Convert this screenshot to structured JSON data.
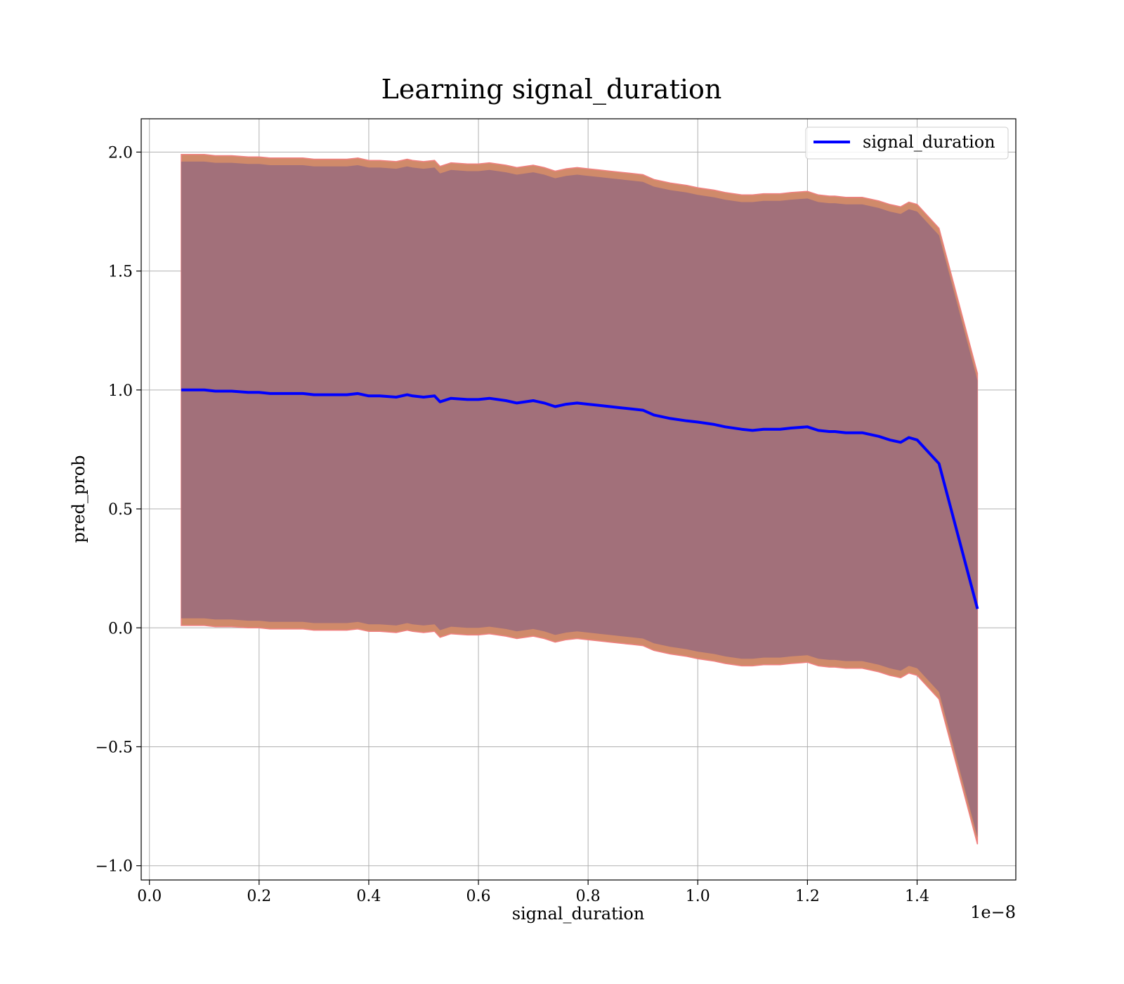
{
  "chart_data": {
    "type": "line",
    "title": "Learning signal_duration",
    "xlabel": "signal_duration",
    "ylabel": "pred_prob",
    "x_offset_label": "1e−8",
    "xlim": [
      -0.015,
      1.58
    ],
    "ylim": [
      -1.06,
      2.14
    ],
    "x_ticks": [
      0.0,
      0.2,
      0.4,
      0.6,
      0.8,
      1.0,
      1.2,
      1.4
    ],
    "x_tick_labels": [
      "0.0",
      "0.2",
      "0.4",
      "0.6",
      "0.8",
      "1.0",
      "1.2",
      "1.4"
    ],
    "y_ticks": [
      -1.0,
      -0.5,
      0.0,
      0.5,
      1.0,
      1.5,
      2.0
    ],
    "y_tick_labels": [
      "−1.0",
      "−0.5",
      "0.0",
      "0.5",
      "1.0",
      "1.5",
      "2.0"
    ],
    "grid": true,
    "legend_position": "top-right",
    "colors": {
      "line": "#0000ff",
      "band_outer": "#d08a6a",
      "band_inner": "#a2707a",
      "band_edge": "#f08080",
      "grid": "#b0b0b0"
    },
    "series": [
      {
        "name": "signal_duration",
        "x": [
          0.058,
          0.08,
          0.1,
          0.12,
          0.15,
          0.18,
          0.2,
          0.22,
          0.25,
          0.28,
          0.3,
          0.33,
          0.36,
          0.38,
          0.4,
          0.42,
          0.45,
          0.47,
          0.48,
          0.5,
          0.52,
          0.53,
          0.55,
          0.58,
          0.6,
          0.62,
          0.65,
          0.67,
          0.7,
          0.72,
          0.74,
          0.76,
          0.78,
          0.8,
          0.82,
          0.84,
          0.86,
          0.88,
          0.9,
          0.92,
          0.95,
          0.98,
          1.0,
          1.03,
          1.05,
          1.08,
          1.1,
          1.12,
          1.15,
          1.17,
          1.2,
          1.22,
          1.24,
          1.25,
          1.27,
          1.3,
          1.33,
          1.35,
          1.37,
          1.385,
          1.4,
          1.44,
          1.51
        ],
        "values": [
          1.0,
          1.0,
          1.0,
          0.995,
          0.995,
          0.99,
          0.99,
          0.985,
          0.985,
          0.985,
          0.98,
          0.98,
          0.98,
          0.985,
          0.975,
          0.975,
          0.97,
          0.98,
          0.975,
          0.97,
          0.975,
          0.95,
          0.965,
          0.96,
          0.96,
          0.965,
          0.955,
          0.945,
          0.955,
          0.945,
          0.93,
          0.94,
          0.945,
          0.94,
          0.935,
          0.93,
          0.925,
          0.92,
          0.915,
          0.895,
          0.88,
          0.87,
          0.865,
          0.855,
          0.845,
          0.835,
          0.83,
          0.835,
          0.835,
          0.84,
          0.845,
          0.83,
          0.825,
          0.825,
          0.82,
          0.82,
          0.805,
          0.79,
          0.78,
          0.8,
          0.79,
          0.69,
          0.08
        ]
      }
    ],
    "band": {
      "upper_outer": [
        1.99,
        1.99,
        1.99,
        1.985,
        1.985,
        1.98,
        1.98,
        1.975,
        1.975,
        1.975,
        1.97,
        1.97,
        1.97,
        1.975,
        1.965,
        1.965,
        1.96,
        1.97,
        1.965,
        1.96,
        1.965,
        1.94,
        1.955,
        1.95,
        1.95,
        1.955,
        1.945,
        1.935,
        1.945,
        1.935,
        1.92,
        1.93,
        1.935,
        1.93,
        1.925,
        1.92,
        1.915,
        1.91,
        1.905,
        1.885,
        1.87,
        1.86,
        1.85,
        1.84,
        1.83,
        1.82,
        1.82,
        1.825,
        1.825,
        1.83,
        1.835,
        1.82,
        1.815,
        1.815,
        1.81,
        1.81,
        1.795,
        1.78,
        1.77,
        1.79,
        1.78,
        1.68,
        1.07
      ],
      "upper_inner": [
        1.96,
        1.96,
        1.96,
        1.955,
        1.955,
        1.95,
        1.95,
        1.945,
        1.945,
        1.945,
        1.94,
        1.94,
        1.94,
        1.945,
        1.935,
        1.935,
        1.93,
        1.94,
        1.935,
        1.93,
        1.935,
        1.91,
        1.925,
        1.92,
        1.92,
        1.925,
        1.915,
        1.905,
        1.915,
        1.905,
        1.89,
        1.9,
        1.905,
        1.9,
        1.895,
        1.89,
        1.885,
        1.88,
        1.875,
        1.855,
        1.84,
        1.83,
        1.82,
        1.81,
        1.8,
        1.79,
        1.79,
        1.795,
        1.795,
        1.8,
        1.805,
        1.79,
        1.785,
        1.785,
        1.78,
        1.78,
        1.765,
        1.75,
        1.74,
        1.76,
        1.75,
        1.65,
        1.04
      ],
      "lower_inner": [
        0.04,
        0.04,
        0.04,
        0.035,
        0.035,
        0.03,
        0.03,
        0.025,
        0.025,
        0.025,
        0.02,
        0.02,
        0.02,
        0.025,
        0.015,
        0.015,
        0.01,
        0.02,
        0.015,
        0.01,
        0.015,
        -0.01,
        0.005,
        0.0,
        0.0,
        0.005,
        -0.005,
        -0.015,
        -0.005,
        -0.015,
        -0.03,
        -0.02,
        -0.015,
        -0.02,
        -0.025,
        -0.03,
        -0.035,
        -0.04,
        -0.045,
        -0.065,
        -0.08,
        -0.09,
        -0.1,
        -0.11,
        -0.12,
        -0.13,
        -0.13,
        -0.125,
        -0.125,
        -0.12,
        -0.115,
        -0.13,
        -0.135,
        -0.135,
        -0.14,
        -0.14,
        -0.155,
        -0.17,
        -0.18,
        -0.16,
        -0.17,
        -0.27,
        -0.88
      ],
      "lower_outer": [
        0.01,
        0.01,
        0.01,
        0.005,
        0.005,
        0.0,
        0.0,
        -0.005,
        -0.005,
        -0.005,
        -0.01,
        -0.01,
        -0.01,
        -0.005,
        -0.015,
        -0.015,
        -0.02,
        -0.01,
        -0.015,
        -0.02,
        -0.015,
        -0.04,
        -0.025,
        -0.03,
        -0.03,
        -0.025,
        -0.035,
        -0.045,
        -0.035,
        -0.045,
        -0.06,
        -0.05,
        -0.045,
        -0.05,
        -0.055,
        -0.06,
        -0.065,
        -0.07,
        -0.075,
        -0.095,
        -0.11,
        -0.12,
        -0.13,
        -0.14,
        -0.15,
        -0.16,
        -0.16,
        -0.155,
        -0.155,
        -0.15,
        -0.145,
        -0.16,
        -0.165,
        -0.165,
        -0.17,
        -0.17,
        -0.185,
        -0.2,
        -0.21,
        -0.19,
        -0.2,
        -0.3,
        -0.91
      ]
    }
  }
}
